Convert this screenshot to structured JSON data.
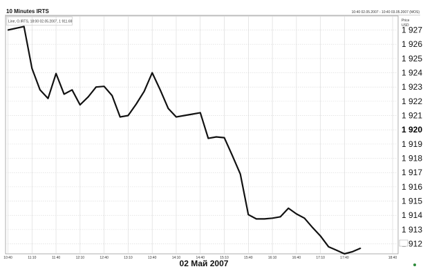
{
  "header": {
    "title": "10 Minutes IRTS",
    "range_text": "10:40 02.05.2007 - 10:40 03.05.2007 (MOS)",
    "series_caption": "Line, O.IRTS, 18:00 02.05.2007, 1 911.69"
  },
  "axis": {
    "price_label": "Price",
    "currency_label": "USD",
    "current_price_tick": "1 920",
    "date_label": "02 Май 2007"
  },
  "chart_data": {
    "type": "line",
    "title": "10 Minutes IRTS",
    "ylabel": "Price",
    "ylim": [
      1911.3,
      1927.8
    ],
    "y_ticks": [
      "1 927",
      "1 926",
      "1 925",
      "1 924",
      "1 923",
      "1 922",
      "1 921",
      "1 920",
      "1 919",
      "1 918",
      "1 917",
      "1 916",
      "1 915",
      "1 914",
      "1 913",
      "1 912"
    ],
    "x_ticks": [
      "10:40",
      "11:10",
      "11:40",
      "12:10",
      "12:40",
      "13:10",
      "13:40",
      "14:10",
      "14:40",
      "15:10",
      "15:40",
      "16:10",
      "16:40",
      "17:10",
      "17:40",
      "18:40"
    ],
    "x": [
      "10:40",
      "11:00",
      "11:10",
      "11:20",
      "11:30",
      "11:40",
      "11:50",
      "12:00",
      "12:10",
      "12:20",
      "12:30",
      "12:40",
      "12:50",
      "13:00",
      "13:10",
      "13:20",
      "13:30",
      "13:40",
      "13:50",
      "14:00",
      "14:10",
      "14:20",
      "14:30",
      "14:40",
      "14:50",
      "15:00",
      "15:10",
      "15:20",
      "15:30",
      "15:40",
      "15:50",
      "16:00",
      "16:10",
      "16:20",
      "16:30",
      "16:40",
      "16:50",
      "17:00",
      "17:10",
      "17:20",
      "17:30",
      "17:40",
      "17:50",
      "18:00"
    ],
    "series": [
      {
        "values": [
          1927.0,
          1927.25,
          1924.3,
          1922.8,
          1922.2,
          1923.95,
          1922.5,
          1922.8,
          1921.75,
          1922.3,
          1923.0,
          1923.05,
          1922.4,
          1920.9,
          1921.0,
          1921.8,
          1922.7,
          1924.0,
          1922.8,
          1921.5,
          1920.9,
          1921.0,
          1921.1,
          1921.2,
          1919.4,
          1919.5,
          1919.45,
          1918.2,
          1916.9,
          1914.05,
          1913.75,
          1913.75,
          1913.8,
          1913.9,
          1914.5,
          1914.1,
          1913.8,
          1913.15,
          1912.55,
          1911.8,
          1911.55,
          1911.3,
          1911.45,
          1911.69
        ]
      }
    ],
    "grid": true
  }
}
